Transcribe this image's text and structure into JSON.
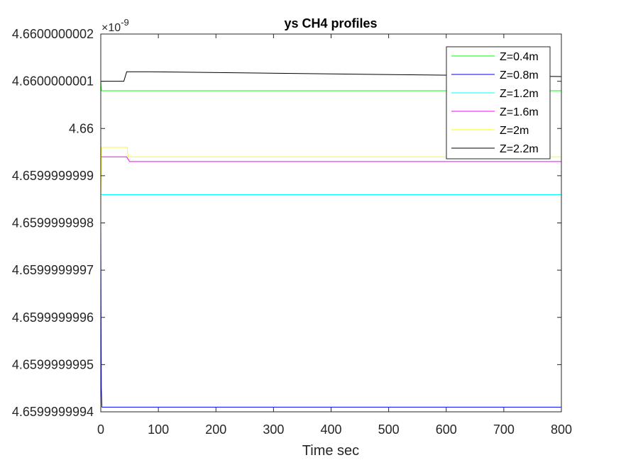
{
  "chart_data": {
    "type": "line",
    "title": "ys CH4 profiles",
    "xlabel": "Time sec",
    "ylabel": "",
    "exponent_label": "×10",
    "exponent_power": "-9",
    "xlim": [
      0,
      800
    ],
    "ylim": [
      4.6599999994,
      4.6600000002
    ],
    "x_ticks": [
      0,
      100,
      200,
      300,
      400,
      500,
      600,
      700,
      800
    ],
    "x_tick_labels": [
      "0",
      "100",
      "200",
      "300",
      "400",
      "500",
      "600",
      "700",
      "800"
    ],
    "y_ticks": [
      4.6599999994,
      4.6599999995,
      4.6599999996,
      4.6599999997,
      4.6599999998,
      4.6599999999,
      4.66,
      4.6600000001,
      4.6600000002
    ],
    "y_tick_labels": [
      "4.6599999994",
      "4.6599999995",
      "4.6599999996",
      "4.6599999997",
      "4.6599999998",
      "4.6599999999",
      "4.66",
      "4.6600000001",
      "4.6600000002"
    ],
    "grid": false,
    "legend_position": "top-right",
    "series": [
      {
        "name": "Z=0.4m",
        "color": "#00ff00",
        "x": [
          0,
          1,
          2,
          15,
          18,
          30,
          60,
          200,
          800
        ],
        "y": [
          4.6600000001,
          4.66000000008,
          4.66000000008,
          4.66000000008,
          4.66000000008,
          4.66000000008,
          4.66000000008,
          4.66000000008,
          4.66000000008
        ]
      },
      {
        "name": "Z=0.8m",
        "color": "#0000ff",
        "x": [
          0,
          0.5,
          1,
          2,
          5,
          30,
          50,
          160,
          800
        ],
        "y": [
          4.6599999998,
          4.6599999996,
          4.65999999945,
          4.65999999941,
          4.65999999941,
          4.65999999941,
          4.65999999941,
          4.65999999941,
          4.65999999941
        ]
      },
      {
        "name": "Z=1.2m",
        "color": "#00ffff",
        "x": [
          0,
          1,
          2,
          30,
          50,
          200,
          800
        ],
        "y": [
          4.65999999986,
          4.65999999986,
          4.65999999986,
          4.65999999986,
          4.65999999986,
          4.65999999986,
          4.65999999986
        ]
      },
      {
        "name": "Z=1.6m",
        "color": "#ff00ff",
        "x": [
          0,
          1,
          2,
          40,
          45,
          50,
          100,
          800
        ],
        "y": [
          4.65999999994,
          4.65999999994,
          4.65999999994,
          4.65999999994,
          4.65999999994,
          4.65999999993,
          4.65999999993,
          4.65999999993
        ]
      },
      {
        "name": "Z=2m",
        "color": "#ffff00",
        "x": [
          0,
          0.5,
          1,
          2,
          5,
          46,
          47,
          60,
          800
        ],
        "y": [
          4.65999999984,
          4.6599999999,
          4.65999999996,
          4.65999999996,
          4.65999999996,
          4.65999999996,
          4.65999999994,
          4.65999999994,
          4.65999999994
        ]
      },
      {
        "name": "Z=2.2m",
        "color": "#000000",
        "x": [
          0,
          0.5,
          1,
          2,
          40,
          45,
          80,
          85,
          800
        ],
        "y": [
          4.6600000001,
          4.6600000001,
          4.6600000001,
          4.6600000001,
          4.6600000001,
          4.66000000012,
          4.66000000012,
          4.66000000012,
          4.66000000011
        ]
      }
    ]
  }
}
